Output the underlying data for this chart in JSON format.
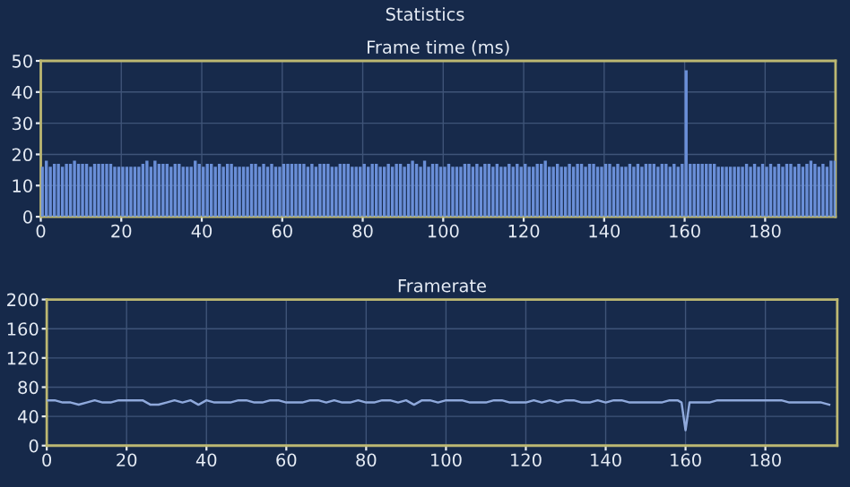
{
  "chart_data": [
    {
      "type": "bar",
      "title": "Frame time (ms)",
      "annotations": [
        "Statistics"
      ],
      "xlim": [
        0,
        197.5
      ],
      "ylim": [
        0,
        50
      ],
      "xticks": [
        0,
        20,
        40,
        60,
        80,
        100,
        120,
        140,
        160,
        180
      ],
      "yticks": [
        0,
        10,
        20,
        30,
        40,
        50
      ],
      "grid": true,
      "series": [
        {
          "color": "#6a8fd8",
          "x": [
            0,
            1,
            2,
            3,
            4,
            5,
            6,
            7,
            8,
            9,
            10,
            11,
            12,
            13,
            14,
            15,
            16,
            17,
            18,
            19,
            20,
            21,
            22,
            23,
            24,
            25,
            26,
            27,
            28,
            29,
            30,
            31,
            32,
            33,
            34,
            35,
            36,
            37,
            38,
            39,
            40,
            41,
            42,
            43,
            44,
            45,
            46,
            47,
            48,
            49,
            50,
            51,
            52,
            53,
            54,
            55,
            56,
            57,
            58,
            59,
            60,
            61,
            62,
            63,
            64,
            65,
            66,
            67,
            68,
            69,
            70,
            71,
            72,
            73,
            74,
            75,
            76,
            77,
            78,
            79,
            80,
            81,
            82,
            83,
            84,
            85,
            86,
            87,
            88,
            89,
            90,
            91,
            92,
            93,
            94,
            95,
            96,
            97,
            98,
            99,
            100,
            101,
            102,
            103,
            104,
            105,
            106,
            107,
            108,
            109,
            110,
            111,
            112,
            113,
            114,
            115,
            116,
            117,
            118,
            119,
            120,
            121,
            122,
            123,
            124,
            125,
            126,
            127,
            128,
            129,
            130,
            131,
            132,
            133,
            134,
            135,
            136,
            137,
            138,
            139,
            140,
            141,
            142,
            143,
            144,
            145,
            146,
            147,
            148,
            149,
            150,
            151,
            152,
            153,
            154,
            155,
            156,
            157,
            158,
            159,
            160,
            161,
            162,
            163,
            164,
            165,
            166,
            167,
            168,
            169,
            170,
            171,
            172,
            173,
            174,
            175,
            176,
            177,
            178,
            179,
            180,
            181,
            182,
            183,
            184,
            185,
            186,
            187,
            188,
            189,
            190,
            191,
            192,
            193,
            194,
            195,
            196,
            197
          ],
          "values": [
            16,
            18,
            16,
            17,
            17,
            16,
            17,
            17,
            18,
            17,
            17,
            17,
            16,
            17,
            17,
            17,
            17,
            17,
            16,
            16,
            16,
            16,
            16,
            16,
            16,
            17,
            18,
            16,
            18,
            17,
            17,
            17,
            16,
            17,
            17,
            16,
            16,
            16,
            18,
            17,
            16,
            17,
            17,
            16,
            17,
            16,
            17,
            17,
            16,
            16,
            16,
            16,
            17,
            17,
            16,
            17,
            16,
            17,
            16,
            16,
            17,
            17,
            17,
            17,
            17,
            17,
            16,
            17,
            16,
            17,
            17,
            17,
            16,
            16,
            17,
            17,
            17,
            16,
            16,
            16,
            17,
            16,
            17,
            17,
            16,
            16,
            17,
            16,
            17,
            17,
            16,
            17,
            18,
            17,
            16,
            18,
            16,
            17,
            17,
            16,
            16,
            17,
            16,
            16,
            16,
            17,
            17,
            16,
            17,
            16,
            17,
            17,
            16,
            17,
            16,
            16,
            17,
            16,
            17,
            16,
            17,
            16,
            16,
            17,
            17,
            18,
            16,
            16,
            17,
            16,
            16,
            17,
            16,
            17,
            17,
            16,
            17,
            17,
            16,
            16,
            17,
            17,
            16,
            17,
            16,
            16,
            17,
            16,
            17,
            16,
            17,
            17,
            17,
            16,
            17,
            17,
            16,
            17,
            16,
            17,
            47,
            17,
            17,
            17,
            17,
            17,
            17,
            17,
            16,
            16,
            16,
            16,
            16,
            16,
            16,
            17,
            16,
            17,
            16,
            17,
            16,
            17,
            16,
            17,
            16,
            17,
            17,
            16,
            17,
            16,
            17,
            18,
            17,
            16,
            17,
            16,
            18,
            18
          ]
        }
      ]
    },
    {
      "type": "line",
      "title": "Framerate",
      "xlim": [
        0,
        198
      ],
      "ylim": [
        0,
        200
      ],
      "xticks": [
        0,
        20,
        40,
        60,
        80,
        100,
        120,
        140,
        160,
        180
      ],
      "yticks": [
        0,
        40,
        80,
        120,
        160,
        200
      ],
      "grid": true,
      "series": [
        {
          "color": "#8fa9dc",
          "x": [
            0,
            2,
            4,
            6,
            8,
            10,
            12,
            14,
            16,
            18,
            20,
            22,
            24,
            26,
            28,
            30,
            32,
            34,
            36,
            38,
            40,
            42,
            44,
            46,
            48,
            50,
            52,
            54,
            56,
            58,
            60,
            62,
            64,
            66,
            68,
            70,
            72,
            74,
            76,
            78,
            80,
            82,
            84,
            86,
            88,
            90,
            92,
            94,
            96,
            98,
            100,
            102,
            104,
            106,
            108,
            110,
            112,
            114,
            116,
            118,
            120,
            122,
            124,
            126,
            128,
            130,
            132,
            134,
            136,
            138,
            140,
            142,
            144,
            146,
            148,
            150,
            152,
            154,
            156,
            158,
            159,
            160,
            161,
            162,
            164,
            166,
            168,
            170,
            172,
            174,
            176,
            178,
            180,
            182,
            184,
            186,
            188,
            190,
            192,
            194,
            196
          ],
          "values": [
            62,
            62,
            59,
            59,
            56,
            59,
            62,
            59,
            59,
            62,
            62,
            62,
            62,
            56,
            56,
            59,
            62,
            59,
            62,
            56,
            62,
            59,
            59,
            59,
            62,
            62,
            59,
            59,
            62,
            62,
            59,
            59,
            59,
            62,
            62,
            59,
            62,
            59,
            59,
            62,
            59,
            59,
            62,
            62,
            59,
            62,
            56,
            62,
            62,
            59,
            62,
            62,
            62,
            59,
            59,
            59,
            62,
            62,
            59,
            59,
            59,
            62,
            59,
            62,
            59,
            62,
            62,
            59,
            59,
            62,
            59,
            62,
            62,
            59,
            59,
            59,
            59,
            59,
            62,
            62,
            59,
            21,
            59,
            59,
            59,
            59,
            62,
            62,
            62,
            62,
            62,
            62,
            62,
            62,
            62,
            59,
            59,
            59,
            59,
            59,
            56
          ]
        }
      ]
    }
  ]
}
